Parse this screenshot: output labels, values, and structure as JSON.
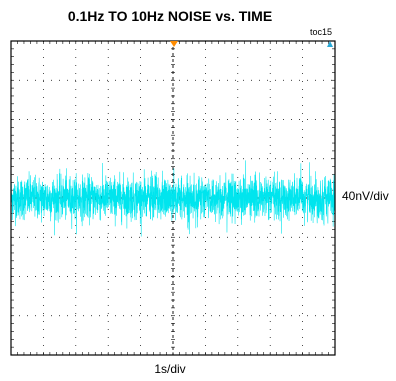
{
  "chart_data": {
    "type": "line",
    "title": "0.1Hz TO 10Hz NOISE vs. TIME",
    "figure_id": "toc15",
    "xlabel": "1s/div",
    "ylabel": "40nV/div",
    "x_divisions": 10,
    "y_divisions": 8,
    "grid": true,
    "series": [
      {
        "color": "#00e5ee",
        "noise_envelope_div": [
          -1.0,
          1.0
        ],
        "typical_band_div": [
          -0.6,
          0.6
        ],
        "center_div": 0.0
      }
    ],
    "trigger_marker_color": "#ff8c00",
    "cursor_marker_color": "#2aa9d6"
  }
}
